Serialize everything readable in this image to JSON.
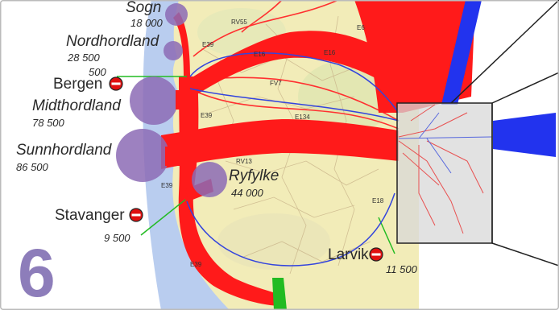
{
  "figure_number": "6",
  "regions": [
    {
      "id": "sogn",
      "name": "Sogn",
      "value": "18 000"
    },
    {
      "id": "nordhordland",
      "name": "Nordhordland",
      "value": "28 500"
    },
    {
      "id": "midthordland",
      "name": "Midthordland",
      "value": "78 500"
    },
    {
      "id": "sunnhordland",
      "name": "Sunnhordland",
      "value": "86 500"
    },
    {
      "id": "ryfylke",
      "name": "Ryfylke",
      "value": "44 000"
    }
  ],
  "cities": [
    {
      "id": "bergen",
      "name": "Bergen",
      "value": "500",
      "icon": "no-entry-icon"
    },
    {
      "id": "stavanger",
      "name": "Stavanger",
      "value": "9 500",
      "icon": "no-entry-icon"
    },
    {
      "id": "larvik",
      "name": "Larvik",
      "value": "11 500",
      "icon": "no-entry-icon"
    }
  ],
  "roads": [
    "RV55",
    "E6",
    "E39",
    "E16",
    "E16",
    "FV7",
    "E39",
    "E134",
    "RV13",
    "E39",
    "E18",
    "E39"
  ],
  "colors": {
    "flow": "#ff1a1a",
    "region_circle": "#8c6bb5",
    "blue_line": "#3344dd",
    "green_line": "#22bb22",
    "land": "#f2ecb8",
    "sea": "#b9cdef",
    "inset": "#d8d8d8"
  }
}
